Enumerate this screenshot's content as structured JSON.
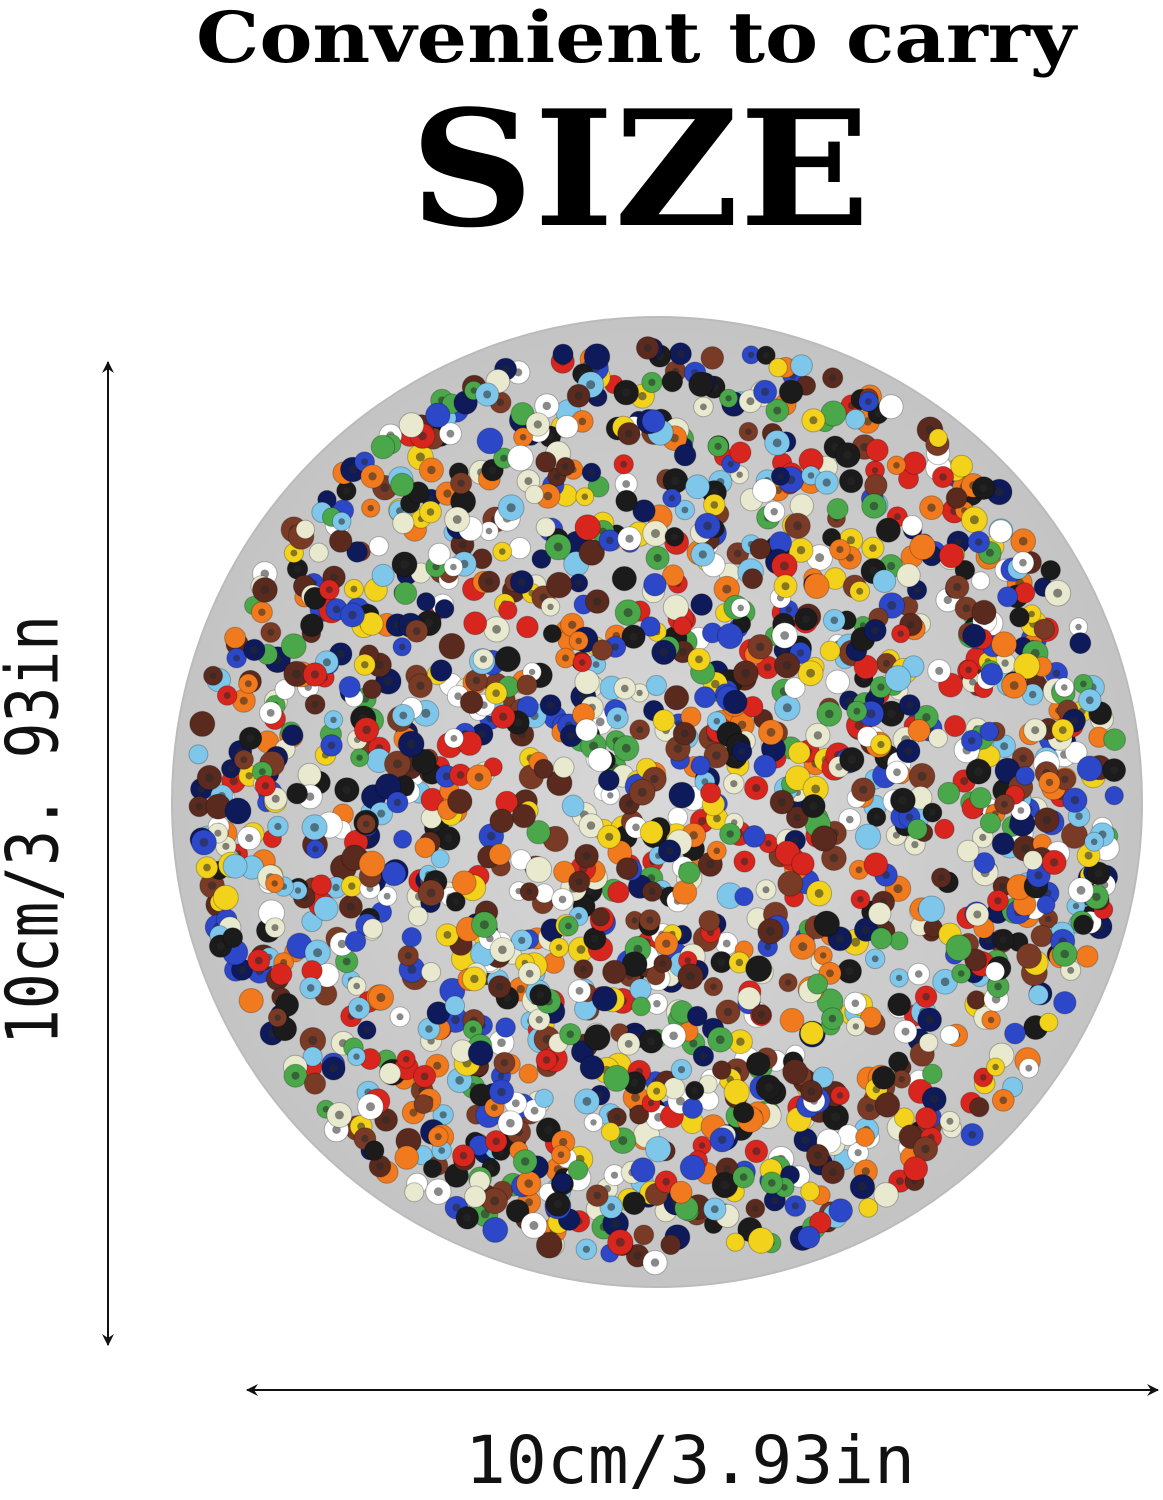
{
  "header": {
    "line1": "Convenient to carry",
    "title": "SIZE"
  },
  "dimensions": {
    "height": "10cm/3. 93in",
    "width": "10cm/3.93in"
  }
}
